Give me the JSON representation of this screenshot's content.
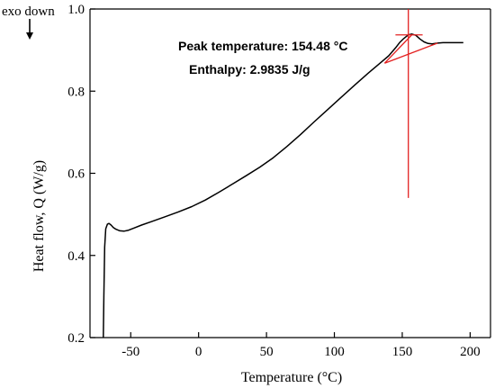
{
  "chart_data": {
    "type": "line",
    "title": "",
    "xlabel": "Temperature (°C)",
    "ylabel": "Heat flow, Q (W/g)",
    "corner_note": "exo down",
    "xlim": [
      -80,
      215
    ],
    "ylim": [
      0.2,
      1.0
    ],
    "x_ticks": [
      -50,
      0,
      50,
      100,
      150,
      200
    ],
    "y_ticks": [
      0.2,
      0.4,
      0.6,
      0.8,
      1.0
    ],
    "x_tick_labels": [
      "-50",
      "0",
      "50",
      "100",
      "150",
      "200"
    ],
    "y_tick_labels": [
      "0.2",
      "0.4",
      "0.6",
      "0.8",
      "1.0"
    ],
    "annotations": [
      "Peak temperature: 154.48 °C",
      "Enthalpy: 2.9835 J/g"
    ],
    "series": [
      {
        "color": "#000000",
        "x": [
          -70.2,
          -69.8,
          -69.2,
          -68.4,
          -67.2,
          -66.0,
          -64.5,
          -62.8,
          -61.0,
          -58.0,
          -55.0,
          -52.0,
          -48.0,
          -42.0,
          -35.0,
          -25.0,
          -15.0,
          -5.0,
          5.0,
          15.0,
          25.0,
          35.0,
          45.0,
          55.0,
          65.0,
          75.0,
          85.0,
          95.0,
          105.0,
          115.0,
          125.0,
          135.0,
          140.0,
          145.0,
          148.0,
          151.0,
          154.48,
          157.0,
          160.0,
          163.0,
          166.0,
          169.0,
          172.0,
          176.0,
          180.0,
          185.0,
          190.0,
          195.0
        ],
        "values": [
          0.2,
          0.3,
          0.42,
          0.465,
          0.476,
          0.478,
          0.474,
          0.468,
          0.464,
          0.46,
          0.459,
          0.461,
          0.466,
          0.474,
          0.482,
          0.494,
          0.506,
          0.519,
          0.535,
          0.554,
          0.574,
          0.594,
          0.615,
          0.638,
          0.665,
          0.694,
          0.725,
          0.755,
          0.785,
          0.815,
          0.844,
          0.872,
          0.886,
          0.905,
          0.918,
          0.928,
          0.937,
          0.939,
          0.936,
          0.927,
          0.92,
          0.916,
          0.915,
          0.917,
          0.918,
          0.918,
          0.918,
          0.918
        ]
      }
    ],
    "overlay_color": "#e32020",
    "overlay_lines": [
      {
        "x": [
          154.48,
          154.48
        ],
        "y": [
          0.54,
          1.0
        ]
      },
      {
        "x": [
          145.0,
          165.0
        ],
        "y": [
          0.937,
          0.937
        ]
      },
      {
        "x": [
          137.0,
          176.0
        ],
        "y": [
          0.868,
          0.917
        ]
      },
      {
        "x": [
          137.0,
          157.0
        ],
        "y": [
          0.868,
          0.937
        ]
      }
    ]
  }
}
